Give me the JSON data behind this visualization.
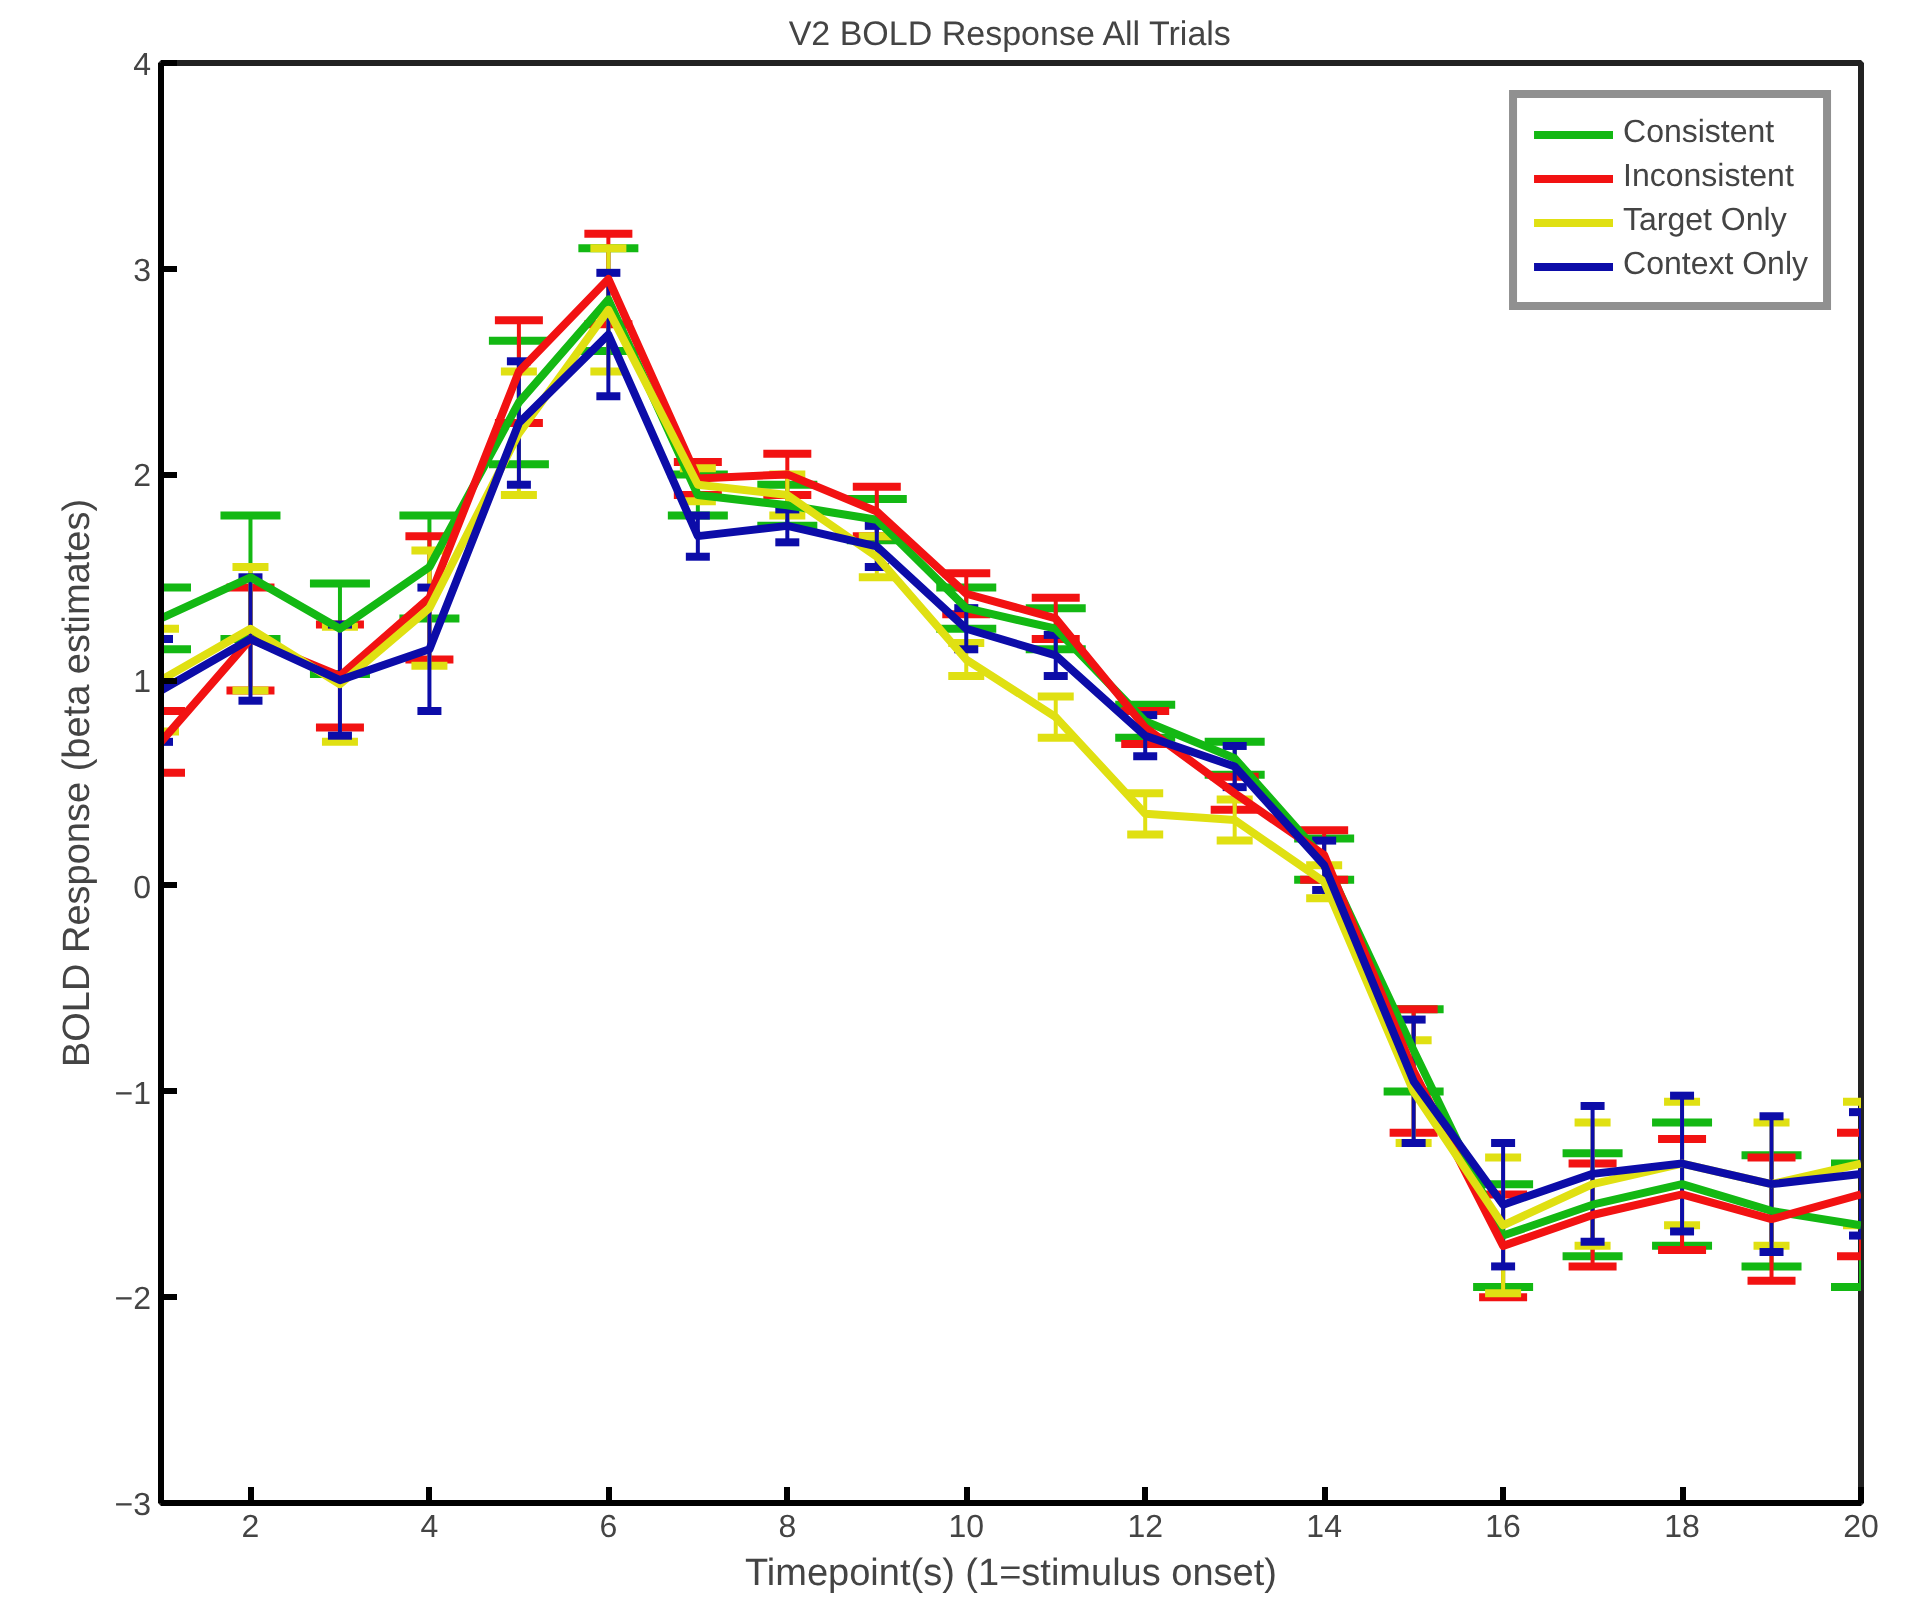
{
  "chart_data": {
    "type": "line",
    "title": "V2 BOLD Response All Trials",
    "xlabel": "Timepoint(s) (1=stimulus onset)",
    "ylabel": "BOLD Response (beta estimates)",
    "x": [
      1,
      2,
      3,
      4,
      5,
      6,
      7,
      8,
      9,
      10,
      11,
      12,
      13,
      14,
      15,
      16,
      17,
      18,
      19,
      20
    ],
    "xlim": [
      1,
      20
    ],
    "xticks": [
      2,
      4,
      6,
      8,
      10,
      12,
      14,
      16,
      18,
      20
    ],
    "ylim": [
      -3,
      4
    ],
    "yticks": [
      -3,
      -2,
      -1,
      0,
      1,
      2,
      3,
      4
    ],
    "grid": false,
    "legend": "top right",
    "marker": "none",
    "line_style": "solid",
    "series": [
      {
        "name": "Consistent",
        "color": "#13b813",
        "values": [
          1.3,
          1.5,
          1.25,
          1.55,
          2.35,
          2.85,
          1.9,
          1.85,
          1.78,
          1.35,
          1.25,
          0.8,
          0.62,
          0.13,
          -0.8,
          -1.7,
          -1.55,
          -1.45,
          -1.58,
          -1.65
        ],
        "errors": [
          0.15,
          0.3,
          0.22,
          0.25,
          0.3,
          0.25,
          0.1,
          0.1,
          0.1,
          0.1,
          0.1,
          0.08,
          0.08,
          0.1,
          0.2,
          0.25,
          0.25,
          0.3,
          0.27,
          0.3
        ]
      },
      {
        "name": "Inconsistent",
        "color": "#f21212",
        "values": [
          0.7,
          1.2,
          1.02,
          1.4,
          2.5,
          2.95,
          1.98,
          2.0,
          1.82,
          1.42,
          1.3,
          0.77,
          0.45,
          0.15,
          -0.9,
          -1.75,
          -1.6,
          -1.5,
          -1.62,
          -1.5
        ],
        "errors": [
          0.15,
          0.25,
          0.25,
          0.3,
          0.25,
          0.22,
          0.08,
          0.1,
          0.12,
          0.1,
          0.1,
          0.08,
          0.08,
          0.12,
          0.3,
          0.25,
          0.25,
          0.27,
          0.3,
          0.3
        ]
      },
      {
        "name": "Target Only",
        "color": "#e0e012",
        "values": [
          1.0,
          1.25,
          0.98,
          1.35,
          2.2,
          2.8,
          1.95,
          1.9,
          1.6,
          1.1,
          0.82,
          0.35,
          0.32,
          0.02,
          -1.0,
          -1.65,
          -1.45,
          -1.35,
          -1.45,
          -1.35
        ],
        "errors": [
          0.25,
          0.3,
          0.28,
          0.28,
          0.3,
          0.3,
          0.08,
          0.1,
          0.1,
          0.08,
          0.1,
          0.1,
          0.1,
          0.08,
          0.25,
          0.33,
          0.3,
          0.3,
          0.3,
          0.3
        ]
      },
      {
        "name": "Context Only",
        "color": "#0c0ca8",
        "values": [
          0.95,
          1.2,
          1.0,
          1.15,
          2.25,
          2.68,
          1.7,
          1.75,
          1.65,
          1.25,
          1.12,
          0.73,
          0.58,
          0.1,
          -0.95,
          -1.55,
          -1.4,
          -1.35,
          -1.45,
          -1.4
        ],
        "errors": [
          0.25,
          0.3,
          0.27,
          0.3,
          0.3,
          0.3,
          0.1,
          0.08,
          0.1,
          0.1,
          0.1,
          0.1,
          0.1,
          0.12,
          0.3,
          0.3,
          0.33,
          0.33,
          0.33,
          0.3
        ]
      }
    ]
  }
}
